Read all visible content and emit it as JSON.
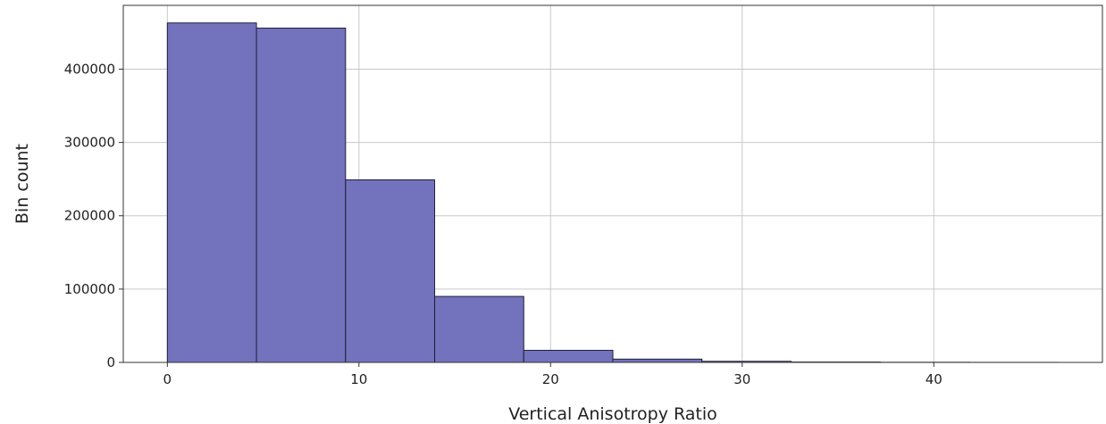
{
  "chart_data": {
    "type": "bar",
    "subtype": "histogram",
    "title": "",
    "xlabel": "Vertical Anisotropy Ratio",
    "ylabel": "Bin count",
    "bins": [
      {
        "x0": 0.0,
        "x1": 4.65,
        "count": 463000
      },
      {
        "x0": 4.65,
        "x1": 9.3,
        "count": 456000
      },
      {
        "x0": 9.3,
        "x1": 13.95,
        "count": 249000
      },
      {
        "x0": 13.95,
        "x1": 18.6,
        "count": 90000
      },
      {
        "x0": 18.6,
        "x1": 23.25,
        "count": 16500
      },
      {
        "x0": 23.25,
        "x1": 27.9,
        "count": 4500
      },
      {
        "x0": 27.9,
        "x1": 32.55,
        "count": 1500
      },
      {
        "x0": 32.55,
        "x1": 37.2,
        "count": 500
      },
      {
        "x0": 37.2,
        "x1": 41.85,
        "count": 200
      },
      {
        "x0": 41.85,
        "x1": 46.5,
        "count": 100
      }
    ],
    "xlim": [
      -2.3,
      48.8
    ],
    "ylim": [
      0,
      487000
    ],
    "xticks": [
      0,
      10,
      20,
      30,
      40
    ],
    "xtick_labels": [
      "0",
      "10",
      "20",
      "30",
      "40"
    ],
    "yticks": [
      0,
      100000,
      200000,
      300000,
      400000
    ],
    "ytick_labels": [
      "0",
      "100000",
      "200000",
      "300000",
      "400000"
    ],
    "grid": true,
    "colors": {
      "bar_fill": "#7272bd",
      "bar_edge": "#1f1f3a",
      "grid": "#c8c8c8",
      "axis": "#333333"
    }
  }
}
